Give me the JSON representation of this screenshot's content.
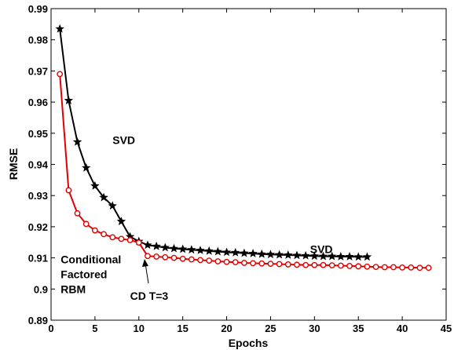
{
  "chart_data": {
    "type": "line",
    "title": "",
    "xlabel": "Epochs",
    "ylabel": "RMSE",
    "xlim": [
      0,
      45
    ],
    "ylim": [
      0.89,
      0.99
    ],
    "xticks": [
      0,
      5,
      10,
      15,
      20,
      25,
      30,
      35,
      40,
      45
    ],
    "yticks": [
      0.89,
      0.9,
      0.91,
      0.92,
      0.93,
      0.94,
      0.95,
      0.96,
      0.97,
      0.98,
      0.99
    ],
    "grid": false,
    "legend": "none",
    "series": [
      {
        "name": "SVD",
        "color": "#000000",
        "marker": "star",
        "x": [
          1,
          2,
          3,
          4,
          5,
          6,
          7,
          8,
          9,
          10,
          11,
          12,
          13,
          14,
          15,
          16,
          17,
          18,
          19,
          20,
          21,
          22,
          23,
          24,
          25,
          26,
          27,
          28,
          29,
          30,
          31,
          32,
          33,
          34,
          35,
          36
        ],
        "y": [
          0.9835,
          0.9605,
          0.9472,
          0.9389,
          0.9331,
          0.9294,
          0.9267,
          0.9217,
          0.9168,
          0.9153,
          0.9141,
          0.9137,
          0.9133,
          0.913,
          0.9128,
          0.9126,
          0.9124,
          0.9122,
          0.912,
          0.9118,
          0.9117,
          0.9115,
          0.9114,
          0.9112,
          0.9111,
          0.911,
          0.9109,
          0.9108,
          0.9107,
          0.9106,
          0.9105,
          0.9105,
          0.9104,
          0.9104,
          0.9103,
          0.9103
        ]
      },
      {
        "name": "Conditional Factored RBM",
        "color": "#e00000",
        "marker": "circle",
        "x": [
          1,
          2,
          3,
          4,
          5,
          6,
          7,
          8,
          9,
          10,
          11,
          12,
          13,
          14,
          15,
          16,
          17,
          18,
          19,
          20,
          21,
          22,
          23,
          24,
          25,
          26,
          27,
          28,
          29,
          30,
          31,
          32,
          33,
          34,
          35,
          36,
          37,
          38,
          39,
          40,
          41,
          42,
          43
        ],
        "y": [
          0.969,
          0.9317,
          0.9243,
          0.9209,
          0.9188,
          0.9176,
          0.9166,
          0.9161,
          0.9157,
          0.9149,
          0.9106,
          0.9104,
          0.9102,
          0.91,
          0.9097,
          0.9095,
          0.9093,
          0.9091,
          0.9089,
          0.9087,
          0.9086,
          0.9084,
          0.9083,
          0.9082,
          0.9081,
          0.908,
          0.9079,
          0.9078,
          0.9077,
          0.9077,
          0.9077,
          0.9076,
          0.9075,
          0.9074,
          0.9073,
          0.9072,
          0.9071,
          0.907,
          0.907,
          0.9069,
          0.9069,
          0.9068,
          0.9068
        ]
      }
    ],
    "annotations": [
      {
        "text": "SVD",
        "x": 7,
        "y": 0.9465
      },
      {
        "text": "SVD",
        "x": 29.5,
        "y": 0.9115
      },
      {
        "text": "Conditional",
        "x": 1.1,
        "y": 0.9083
      },
      {
        "text": "Factored",
        "x": 1.1,
        "y": 0.9035
      },
      {
        "text": "RBM",
        "x": 1.1,
        "y": 0.8987
      },
      {
        "text": "CD T=3",
        "x": 9,
        "y": 0.8965
      }
    ]
  }
}
